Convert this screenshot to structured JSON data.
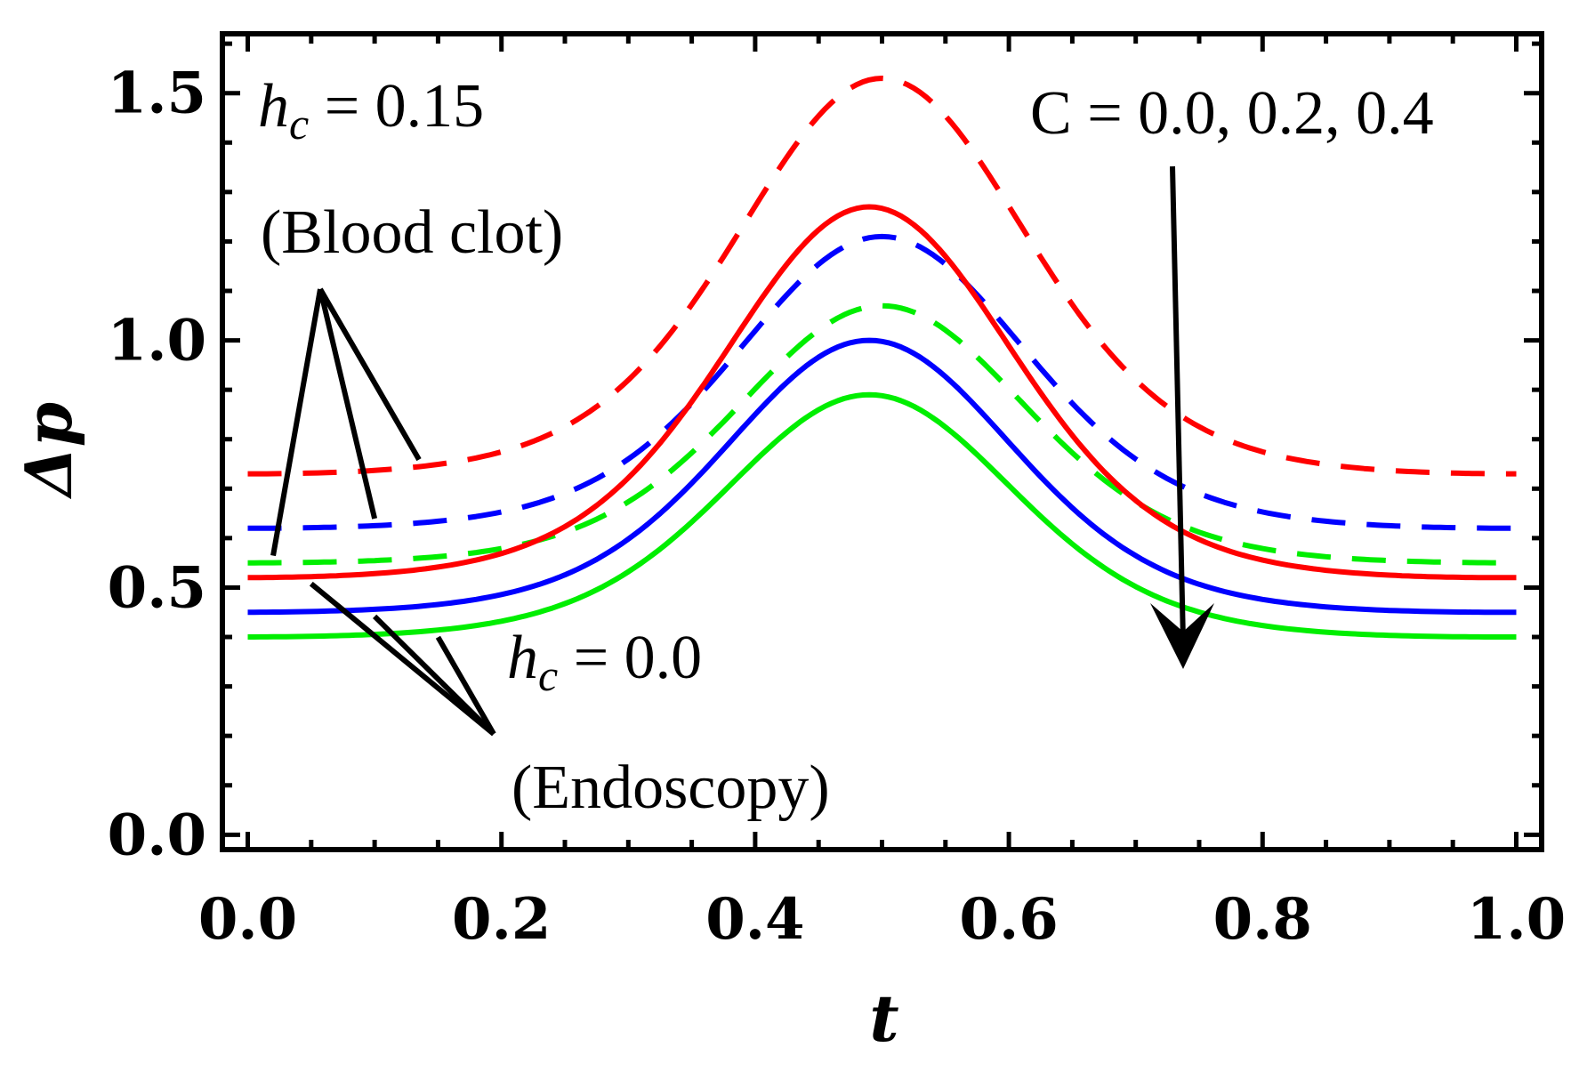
{
  "chart_data": {
    "type": "line",
    "title": "",
    "xlabel": "t",
    "ylabel": "Δp",
    "xlim": [
      -0.02,
      1.02
    ],
    "ylim": [
      -0.03,
      1.62
    ],
    "xticks": [
      "0.0",
      "0.2",
      "0.4",
      "0.6",
      "0.8",
      "1.0"
    ],
    "yticks": [
      "0.0",
      "0.5",
      "1.0",
      "1.5"
    ],
    "annotations": {
      "hc_clot_var": "h",
      "hc_clot_sub": "c",
      "hc_clot_value": " = 0.15",
      "clot_label": "(Blood clot)",
      "hc_endo_var": "h",
      "hc_endo_sub": "c",
      "hc_endo_value": " = 0.0",
      "endo_label": "(Endoscopy)",
      "c_label": "C = 0.0, 0.2, 0.4"
    },
    "series": [
      {
        "name": "h_c = 0.15, C = 0.0",
        "color": "#ff0000",
        "dash": true,
        "min": 0.73,
        "max": 1.53,
        "peak_t": 0.5
      },
      {
        "name": "h_c = 0.15, C = 0.2",
        "color": "#0000ff",
        "dash": true,
        "min": 0.62,
        "max": 1.21,
        "peak_t": 0.5
      },
      {
        "name": "h_c = 0.15, C = 0.4",
        "color": "#00ee00",
        "dash": true,
        "min": 0.55,
        "max": 1.07,
        "peak_t": 0.5
      },
      {
        "name": "h_c = 0.0, C = 0.0",
        "color": "#ff0000",
        "dash": false,
        "min": 0.52,
        "max": 1.27,
        "peak_t": 0.49
      },
      {
        "name": "h_c = 0.0, C = 0.2",
        "color": "#0000ff",
        "dash": false,
        "min": 0.45,
        "max": 1.0,
        "peak_t": 0.49
      },
      {
        "name": "h_c = 0.0, C = 0.4",
        "color": "#00ee00",
        "dash": false,
        "min": 0.4,
        "max": 0.89,
        "peak_t": 0.49
      }
    ]
  }
}
